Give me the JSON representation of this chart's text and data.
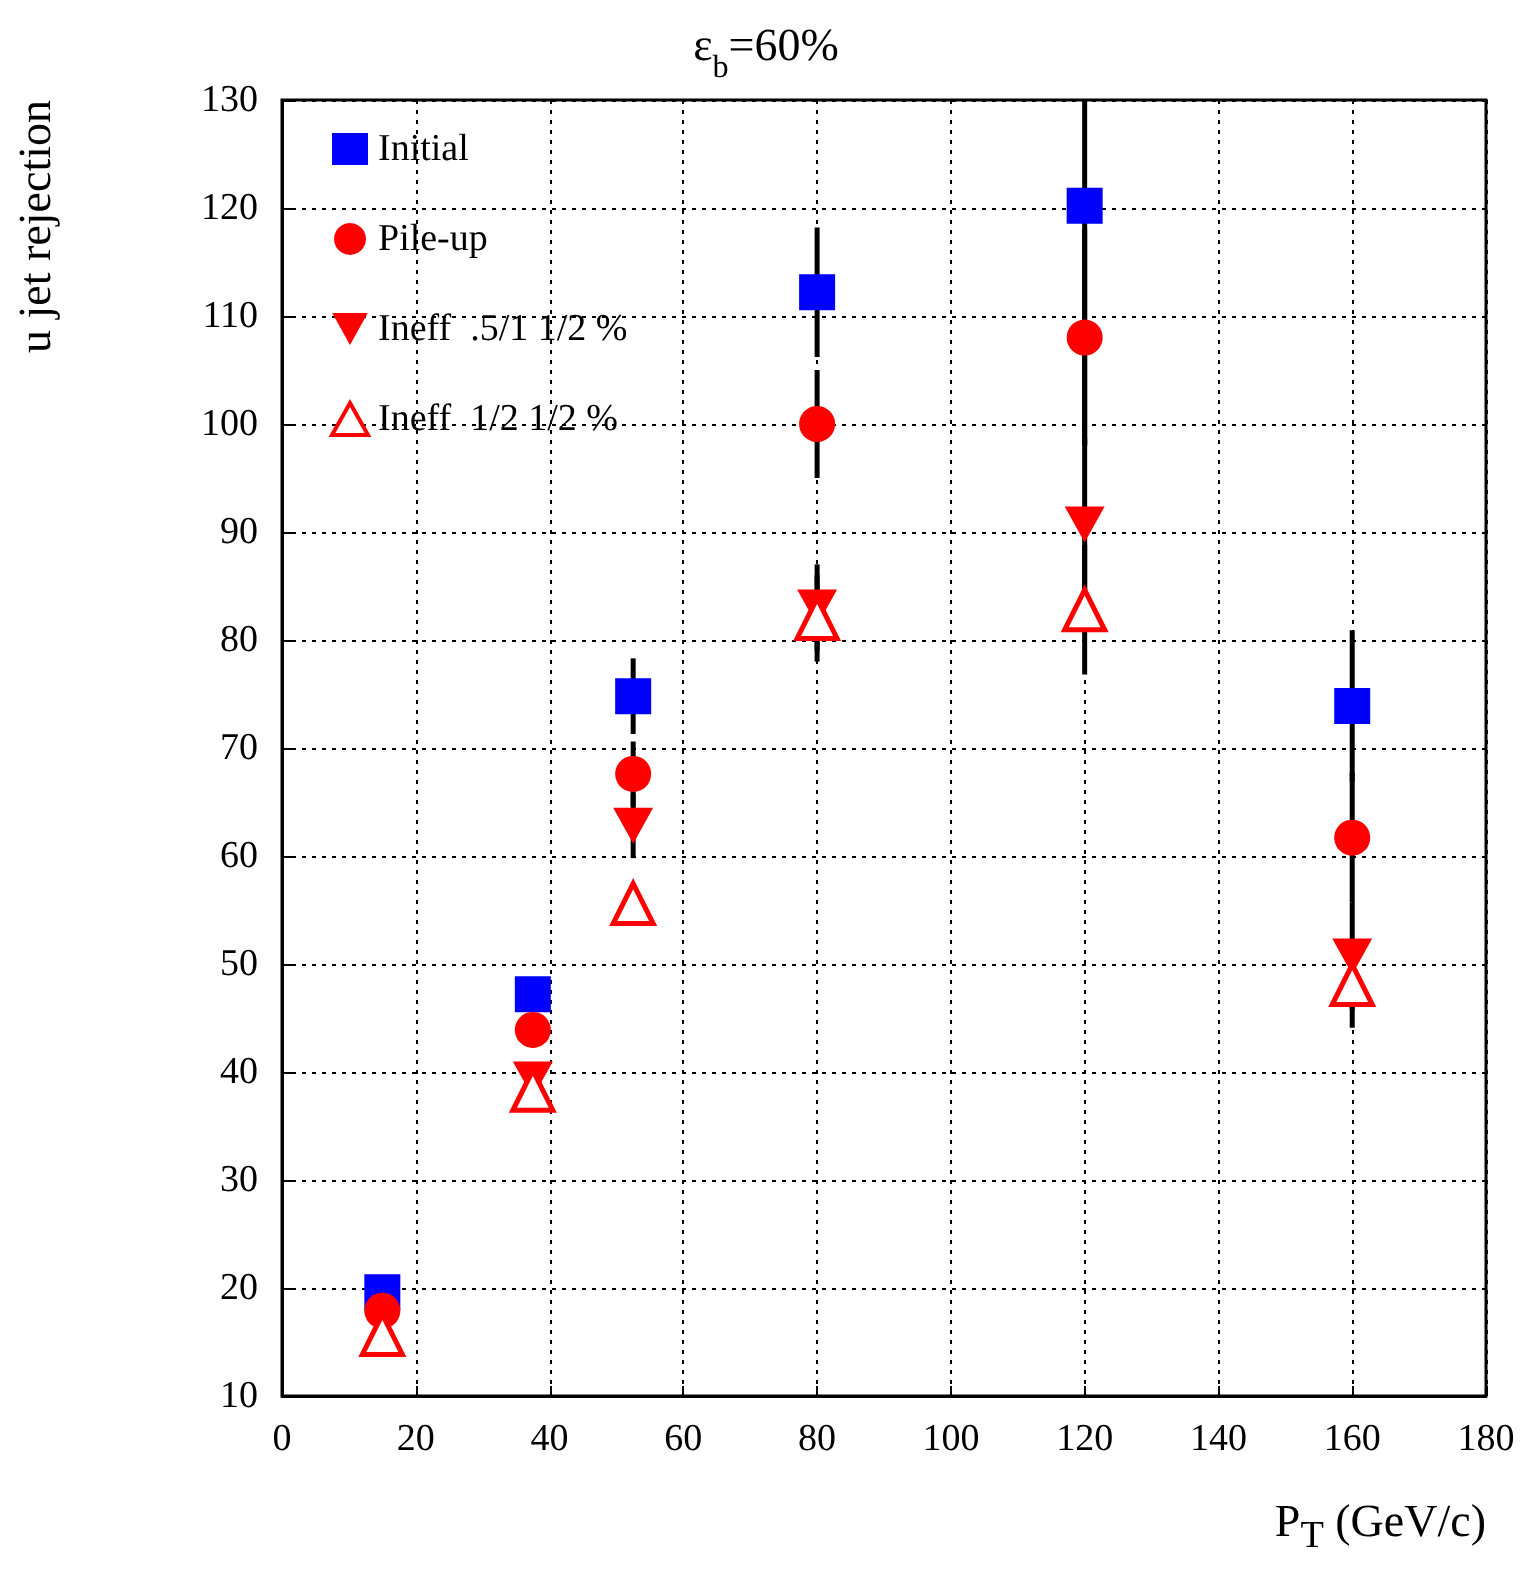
{
  "chart_data": {
    "type": "scatter",
    "title": "ε$_{b}$=60%",
    "xlabel": "P$_{T}$ (GeV/c)",
    "ylabel": "u jet rejection",
    "x": [
      15,
      37.5,
      52.5,
      80,
      120,
      160
    ],
    "series": [
      {
        "name": "Initial",
        "color": "#0000ff",
        "marker": "square",
        "values": [
          19.6,
          47.2,
          74.8,
          112.2,
          120.2,
          73.9
        ],
        "errors": [
          null,
          null,
          3.5,
          6,
          [
            98,
            130
          ],
          7
        ]
      },
      {
        "name": "Pile-up",
        "color": "#ff0000",
        "marker": "circle",
        "values": [
          17.9,
          43.9,
          67.6,
          100,
          108,
          61.7
        ],
        "errors": [
          null,
          null,
          3,
          5,
          10,
          6
        ]
      },
      {
        "name": "Ineff  .5/1 1/2 %",
        "color": "#ff0000",
        "marker": "triangle-down",
        "values": [
          null,
          39.3,
          62.8,
          83,
          90.7,
          50.7
        ],
        "errors": [
          null,
          null,
          3,
          4,
          8,
          5
        ]
      },
      {
        "name": "Ineff  1/2 1/2 %",
        "color": "#ff0000",
        "marker": "triangle-open",
        "values": [
          15.7,
          38.3,
          55.6,
          82,
          82.8,
          48.1
        ],
        "errors": [
          null,
          null,
          null,
          4,
          6,
          4
        ]
      }
    ],
    "xlim": [
      0,
      180
    ],
    "xticks": [
      0,
      20,
      40,
      60,
      80,
      100,
      120,
      140,
      160,
      180
    ],
    "ylim": [
      10,
      130
    ],
    "yticks": [
      10,
      20,
      30,
      40,
      50,
      60,
      70,
      80,
      90,
      100,
      110,
      120,
      130
    ],
    "grid": true,
    "legend": "top left"
  }
}
